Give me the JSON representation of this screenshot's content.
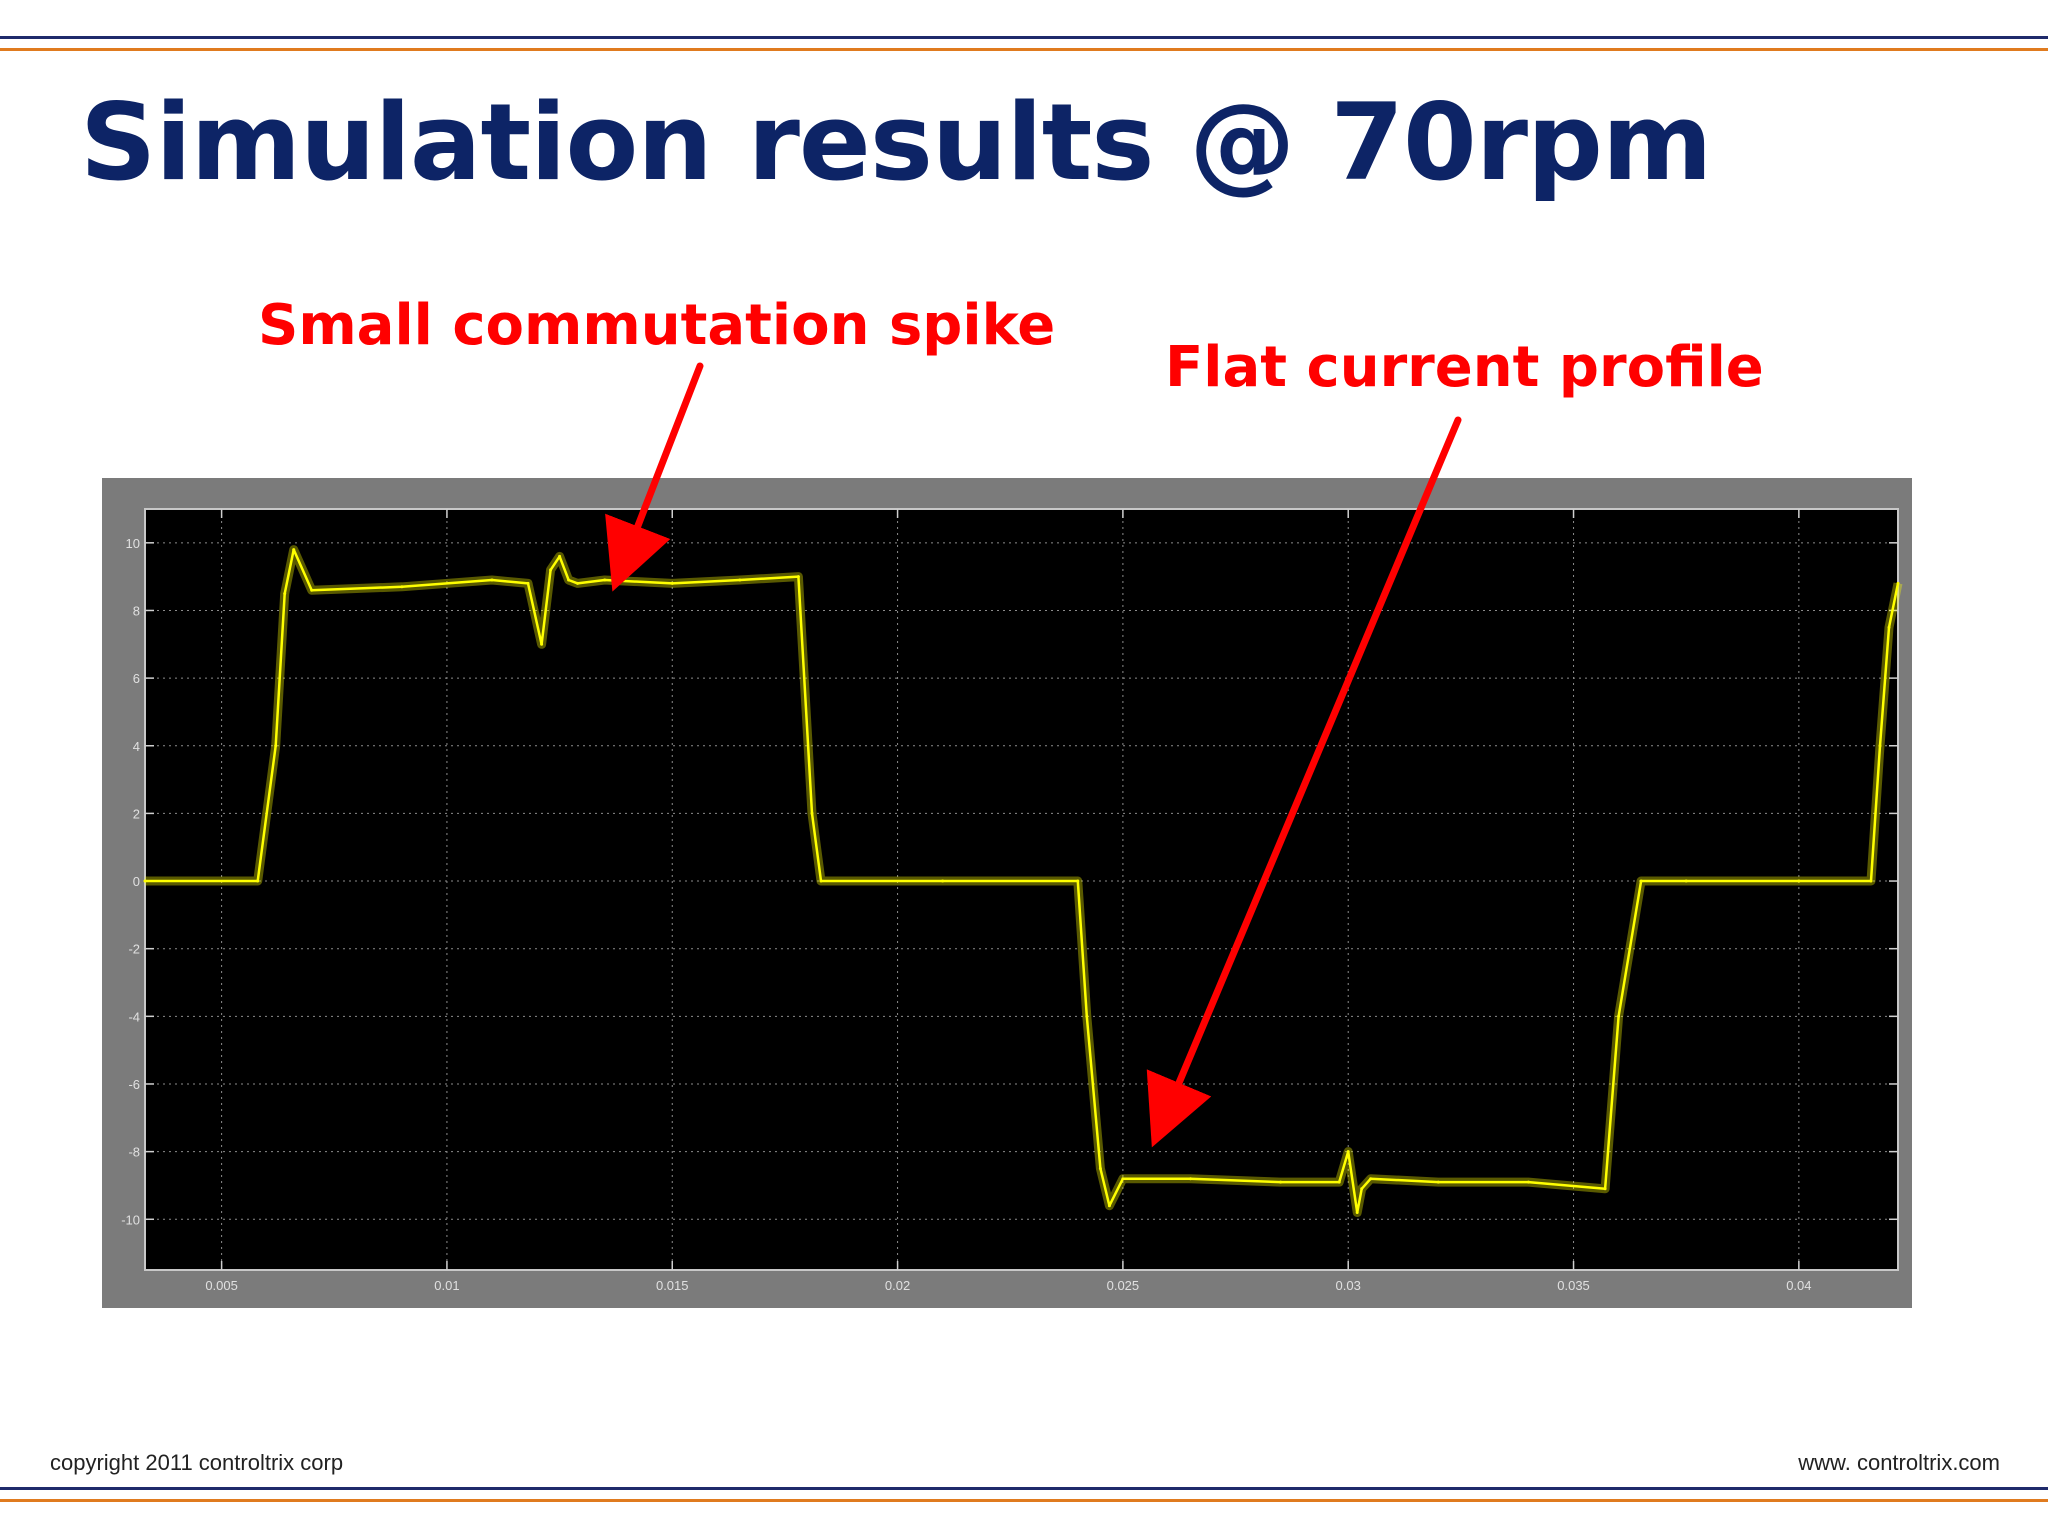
{
  "slide": {
    "title": "Simulation results @ 70rpm",
    "footer_left": "copyright 2011 controltrix corp",
    "footer_right": "www. controltrix.com"
  },
  "annotations": [
    {
      "text": "Small commutation spike"
    },
    {
      "text": "Flat current profile"
    }
  ],
  "colors": {
    "title": "#0d2466",
    "annotation": "#ff0000",
    "trace": "#ffff00",
    "plot_background": "#000000",
    "frame": "#7b7b7b",
    "grid": "#8c8c8c",
    "rule_navy": "#1f2a6b",
    "rule_orange": "#e07b1f"
  },
  "chart_data": {
    "type": "line",
    "title": "",
    "xlabel": "",
    "ylabel": "",
    "xlim": [
      0.0033,
      0.0422
    ],
    "ylim": [
      -11.5,
      11.0
    ],
    "grid": true,
    "x_ticks": [
      0.005,
      0.01,
      0.015,
      0.02,
      0.025,
      0.03,
      0.035,
      0.04
    ],
    "x_tick_labels": [
      "0.005",
      "0.01",
      "0.015",
      "0.02",
      "0.025",
      "0.03",
      "0.035",
      "0.04"
    ],
    "y_ticks": [
      10,
      8,
      6,
      4,
      2,
      0,
      -2,
      -4,
      -6,
      -8,
      -10
    ],
    "y_tick_labels": [
      "10",
      "8",
      "6",
      "4",
      "2",
      "0",
      "-2",
      "-4",
      "-6",
      "-8",
      "-10"
    ],
    "series": [
      {
        "x": [
          0.0033,
          0.0058,
          0.0062,
          0.0064,
          0.0066,
          0.007,
          0.009,
          0.011,
          0.0118,
          0.0121,
          0.0123,
          0.0125,
          0.0127,
          0.0129,
          0.0135,
          0.015,
          0.0165,
          0.0178,
          0.0181,
          0.0183,
          0.021,
          0.024,
          0.0242,
          0.0245,
          0.0247,
          0.025,
          0.0265,
          0.0285,
          0.0298,
          0.03,
          0.0302,
          0.0303,
          0.0305,
          0.032,
          0.034,
          0.0357,
          0.036,
          0.0365,
          0.0375,
          0.04,
          0.0416,
          0.0418,
          0.042,
          0.0422
        ],
        "y": [
          0,
          0,
          4.0,
          8.5,
          9.8,
          8.6,
          8.7,
          8.9,
          8.8,
          7.0,
          9.2,
          9.6,
          8.9,
          8.8,
          8.9,
          8.8,
          8.9,
          9.0,
          2.0,
          0,
          0,
          0,
          -4.0,
          -8.5,
          -9.6,
          -8.8,
          -8.8,
          -8.9,
          -8.9,
          -8.0,
          -9.8,
          -9.1,
          -8.8,
          -8.9,
          -8.9,
          -9.1,
          -4.0,
          0,
          0,
          0,
          0,
          4.0,
          7.5,
          8.8
        ]
      }
    ]
  }
}
